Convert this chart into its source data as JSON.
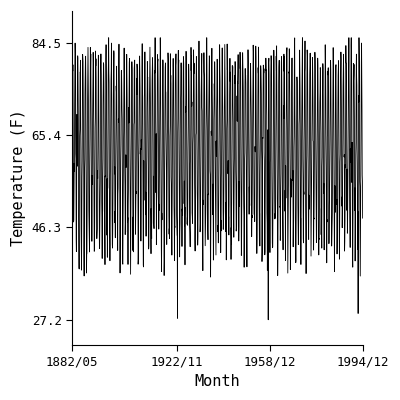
{
  "title": "",
  "xlabel": "Month",
  "ylabel": "Temperature (F)",
  "bg_color": "#ffffff",
  "line_color": "#000000",
  "line_width": 0.6,
  "ylim": [
    22.0,
    91.0
  ],
  "yticks": [
    27.2,
    46.3,
    65.4,
    84.5
  ],
  "ytick_labels": [
    "27.2",
    "46.3",
    "65.4",
    "84.5"
  ],
  "xtick_labels": [
    "1882/05",
    "1922/11",
    "1958/12",
    "1994/12"
  ],
  "start_year": 1882,
  "start_month": 5,
  "end_year": 1994,
  "end_month": 12,
  "tick_font_size": 9,
  "label_font_size": 11
}
